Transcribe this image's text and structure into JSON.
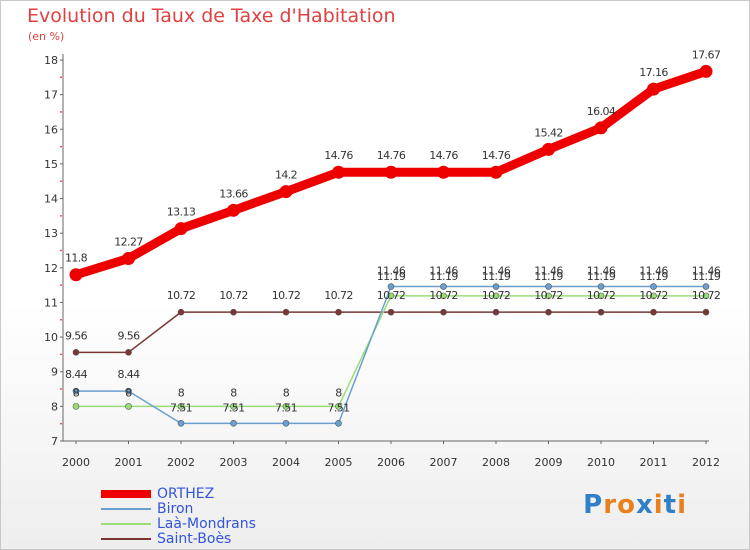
{
  "title": "Evolution du Taux de Taxe d'Habitation",
  "unit": "(en %)",
  "brand": {
    "letters": [
      "P",
      "r",
      "o",
      "x",
      "i",
      "t",
      "i"
    ],
    "colors": [
      "#2f80c8",
      "#e8801e",
      "#e8801e",
      "#2f80c8",
      "#e8801e",
      "#2f80c8",
      "#e8801e"
    ]
  },
  "chart_data": {
    "type": "line",
    "x": [
      2000,
      2001,
      2002,
      2003,
      2004,
      2005,
      2006,
      2007,
      2008,
      2009,
      2010,
      2011,
      2012
    ],
    "ylim": [
      7,
      18
    ],
    "yticks": [
      7,
      8,
      9,
      10,
      11,
      12,
      13,
      14,
      15,
      16,
      17,
      18
    ],
    "legend_position": "bottom-left",
    "series": [
      {
        "name": "ORTHEZ",
        "color": "#ee0000",
        "values": [
          11.8,
          12.27,
          13.13,
          13.66,
          14.2,
          14.76,
          14.76,
          14.76,
          14.76,
          15.42,
          16.04,
          17.16,
          17.67
        ],
        "labels": [
          "11.8",
          "12.27",
          "13.13",
          "13.66",
          "14.2",
          "14.76",
          "14.76",
          "14.76",
          "14.76",
          "15.42",
          "16.04",
          "17.16",
          "17.67"
        ]
      },
      {
        "name": "Biron",
        "color": "#6a9fd0",
        "values": [
          8.44,
          8.44,
          7.51,
          7.51,
          7.51,
          7.51,
          11.46,
          11.46,
          11.46,
          11.46,
          11.46,
          11.46,
          11.46
        ],
        "labels": [
          "8.44",
          "8.44",
          "7.51",
          "7.51",
          "7.51",
          "7.51",
          "11.46",
          "11.46",
          "11.46",
          "11.46",
          "11.46",
          "11.46",
          "11.46"
        ]
      },
      {
        "name": "Laà-Mondrans",
        "color": "#99dd77",
        "values": [
          8,
          8,
          8,
          8,
          8,
          8,
          11.19,
          11.19,
          11.19,
          11.19,
          11.19,
          11.19,
          11.19
        ],
        "labels": [
          "8",
          "8",
          "8",
          "8",
          "8",
          "8",
          "11.19",
          "11.19",
          "11.19",
          "11.19",
          "11.19",
          "11.19",
          "11.19"
        ]
      },
      {
        "name": "Saint-Boès",
        "color": "#7a3535",
        "values": [
          9.56,
          9.56,
          10.72,
          10.72,
          10.72,
          10.72,
          10.72,
          10.72,
          10.72,
          10.72,
          10.72,
          10.72,
          10.72
        ],
        "labels": [
          "9.56",
          "9.56",
          "10.72",
          "10.72",
          "10.72",
          "10.72",
          "10.72",
          "10.72",
          "10.72",
          "10.72",
          "10.72",
          "10.72",
          "10.72"
        ]
      }
    ]
  }
}
